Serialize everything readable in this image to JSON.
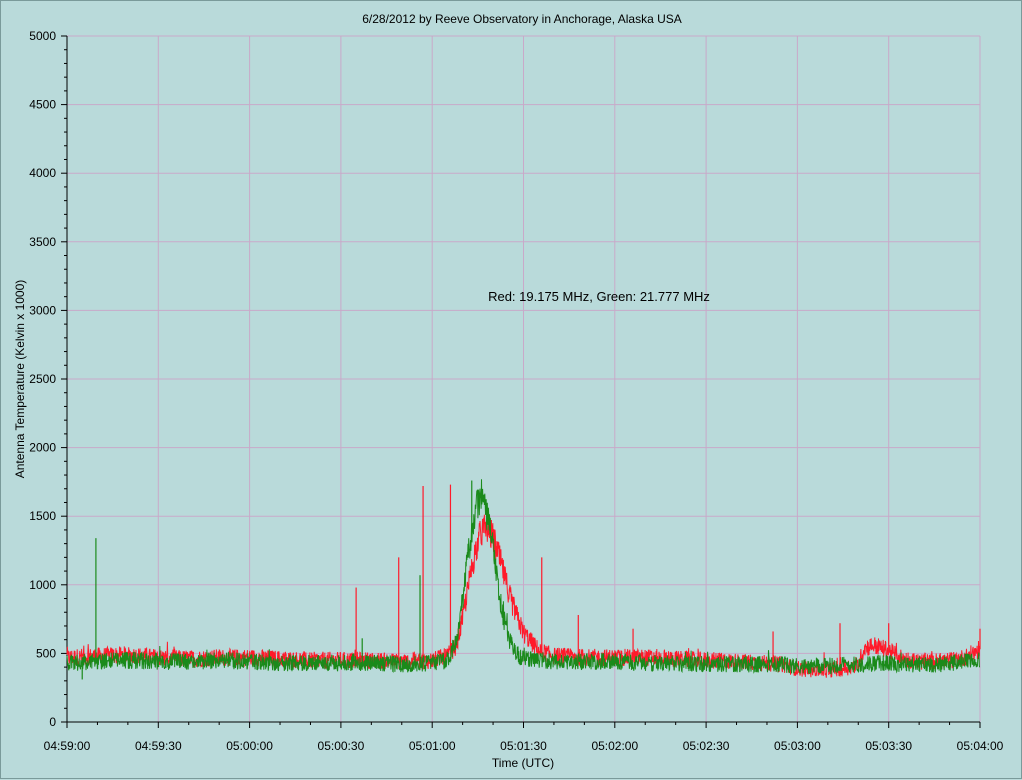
{
  "chart_data": {
    "type": "line",
    "title": "6/28/2012  by  Reeve Observatory  in  Anchorage, Alaska  USA",
    "xlabel": "Time (UTC)",
    "ylabel": "Antenna Temperature (Kelvin x 1000)",
    "annotation": "Red: 19.175 MHz, Green: 21.777 MHz",
    "x_tick_labels": [
      "04:59:00",
      "04:59:30",
      "05:00:00",
      "05:00:30",
      "05:01:00",
      "05:01:30",
      "05:02:00",
      "05:02:30",
      "05:03:00",
      "05:03:30",
      "05:04:00"
    ],
    "xlim": [
      0,
      300
    ],
    "x_unit": "seconds after 04:59:00 UTC",
    "ylim": [
      0,
      5000
    ],
    "y_ticks": [
      0,
      500,
      1000,
      1500,
      2000,
      2500,
      3000,
      3500,
      4000,
      4500,
      5000
    ],
    "grid": true,
    "background_color": "#b9dada",
    "grid_color": "#c9a9c9",
    "series": [
      {
        "name": "Red: 19.175 MHz",
        "color": "#ff1a2a",
        "x": [
          0,
          10,
          20,
          30,
          40,
          50,
          60,
          70,
          80,
          90,
          100,
          105,
          110,
          115,
          120,
          125,
          128,
          130,
          132,
          134,
          136,
          138,
          140,
          142,
          144,
          146,
          148,
          150,
          155,
          160,
          170,
          180,
          190,
          200,
          210,
          220,
          230,
          235,
          240,
          245,
          250,
          255,
          260,
          262,
          265,
          270,
          275,
          280,
          285,
          290,
          295,
          300
        ],
        "values": [
          470,
          480,
          490,
          470,
          460,
          470,
          470,
          460,
          450,
          450,
          450,
          445,
          440,
          440,
          450,
          480,
          560,
          760,
          1000,
          1230,
          1380,
          1420,
          1340,
          1200,
          1040,
          880,
          760,
          650,
          520,
          480,
          470,
          470,
          470,
          460,
          450,
          440,
          430,
          420,
          390,
          380,
          380,
          390,
          420,
          540,
          560,
          520,
          460,
          440,
          440,
          450,
          470,
          530
        ],
        "spikes": [
          [
            95,
            980
          ],
          [
            109,
            1200
          ],
          [
            117,
            1720
          ],
          [
            126,
            1730
          ],
          [
            156,
            1200
          ],
          [
            168,
            780
          ],
          [
            186,
            680
          ],
          [
            232,
            660
          ],
          [
            254,
            720
          ],
          [
            270,
            720
          ],
          [
            300,
            680
          ]
        ]
      },
      {
        "name": "Green: 21.777 MHz",
        "color": "#1a8a1a",
        "x": [
          0,
          10,
          20,
          30,
          40,
          50,
          60,
          70,
          80,
          90,
          100,
          105,
          110,
          115,
          120,
          125,
          128,
          130,
          132,
          134,
          136,
          138,
          140,
          142,
          144,
          146,
          148,
          150,
          155,
          160,
          170,
          180,
          190,
          200,
          210,
          220,
          230,
          235,
          240,
          245,
          250,
          255,
          260,
          262,
          265,
          270,
          275,
          280,
          285,
          290,
          295,
          300
        ],
        "values": [
          430,
          440,
          450,
          440,
          440,
          450,
          440,
          430,
          430,
          430,
          430,
          425,
          420,
          420,
          430,
          450,
          600,
          900,
          1250,
          1550,
          1650,
          1520,
          1260,
          930,
          700,
          560,
          490,
          460,
          450,
          440,
          440,
          440,
          430,
          430,
          420,
          420,
          420,
          420,
          410,
          400,
          410,
          420,
          420,
          420,
          430,
          430,
          420,
          420,
          420,
          430,
          440,
          450
        ],
        "spikes": [
          [
            9.5,
            1340
          ],
          [
            97,
            610
          ],
          [
            116,
            1070
          ],
          [
            133,
            1760
          ],
          [
            5,
            310
          ]
        ]
      }
    ]
  }
}
